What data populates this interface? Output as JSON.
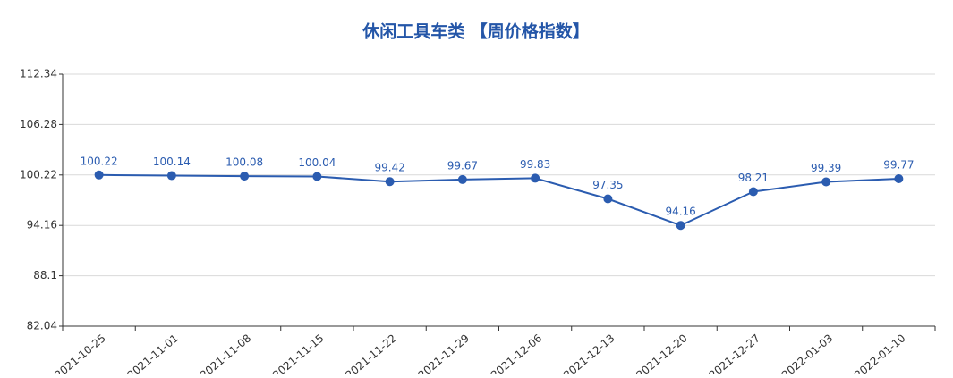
{
  "chart_data": {
    "type": "line",
    "title": "休闲工具车类 【周价格指数】",
    "categories": [
      "2021-10-25",
      "2021-11-01",
      "2021-11-08",
      "2021-11-15",
      "2021-11-22",
      "2021-11-29",
      "2021-12-06",
      "2021-12-13",
      "2021-12-20",
      "2021-12-27",
      "2022-01-03",
      "2022-01-10"
    ],
    "values": [
      100.22,
      100.14,
      100.08,
      100.04,
      99.42,
      99.67,
      99.83,
      97.35,
      94.16,
      98.21,
      99.39,
      99.77
    ],
    "color": "#2b5cb0",
    "ylim": [
      82.04,
      112.34
    ],
    "yticks": [
      82.04,
      88.1,
      94.16,
      100.22,
      106.28,
      112.34
    ],
    "grid": true
  }
}
